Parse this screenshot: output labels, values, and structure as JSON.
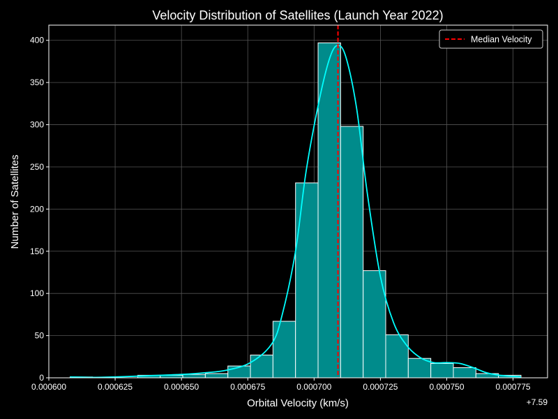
{
  "chart_data": {
    "type": "bar",
    "subtype": "histogram-with-kde",
    "title": "Velocity Distribution of Satellites (Launch Year 2022)",
    "xlabel": "Orbital Velocity (km/s)",
    "ylabel": "Number of Satellites",
    "x_offset_label": "+7.59",
    "xlim": [
      0.0006,
      0.000788
    ],
    "ylim": [
      0,
      418
    ],
    "xticks": [
      0.0006,
      0.000625,
      0.00065,
      0.000675,
      0.0007,
      0.000725,
      0.00075,
      0.000775
    ],
    "xtick_labels": [
      "0.000600",
      "0.000625",
      "0.000650",
      "0.000675",
      "0.000700",
      "0.000725",
      "0.000750",
      "0.000775"
    ],
    "yticks": [
      0,
      50,
      100,
      150,
      200,
      250,
      300,
      350,
      400
    ],
    "ytick_labels": [
      "0",
      "50",
      "100",
      "150",
      "200",
      "250",
      "300",
      "350",
      "400"
    ],
    "grid": true,
    "background": "#000000",
    "legend": {
      "position": "top-right",
      "entries": [
        {
          "label": "Median Velocity",
          "color": "#ff0000",
          "style": "dashed"
        }
      ]
    },
    "median": 0.000709,
    "bins": {
      "edges": [
        0.000608,
        0.0006165,
        0.000625,
        0.0006335,
        0.000642,
        0.0006505,
        0.000659,
        0.0006675,
        0.000676,
        0.0006845,
        0.000693,
        0.0007015,
        0.00071,
        0.0007185,
        0.000727,
        0.0007355,
        0.000744,
        0.0007525,
        0.000761,
        0.0007695,
        0.000778
      ],
      "counts": [
        1,
        0,
        0,
        3,
        3,
        4,
        5,
        14,
        27,
        67,
        231,
        397,
        298,
        127,
        51,
        23,
        17,
        12,
        5,
        3
      ]
    },
    "kde": {
      "x": [
        0.000608,
        0.000616,
        0.000625,
        0.000634,
        0.000642,
        0.00065,
        0.000659,
        0.000667,
        0.000676,
        0.000684,
        0.000688,
        0.000693,
        0.000697,
        0.000702,
        0.000706,
        0.000709,
        0.000712,
        0.000716,
        0.00072,
        0.000725,
        0.00073,
        0.000735,
        0.00074,
        0.000745,
        0.00075,
        0.000755,
        0.00076,
        0.000765,
        0.00077,
        0.000778
      ],
      "y": [
        1,
        0.5,
        1,
        2,
        3,
        4,
        6,
        9,
        18,
        40,
        75,
        150,
        245,
        330,
        380,
        394,
        380,
        320,
        220,
        120,
        65,
        38,
        24,
        18,
        18,
        17,
        12,
        6,
        3,
        1
      ]
    },
    "colors": {
      "bar_fill": "#008b8b",
      "bar_edge": "#ffffff",
      "kde": "#00ffff",
      "median": "#ff0000",
      "grid": "#555555",
      "axes": "#ffffff"
    }
  }
}
